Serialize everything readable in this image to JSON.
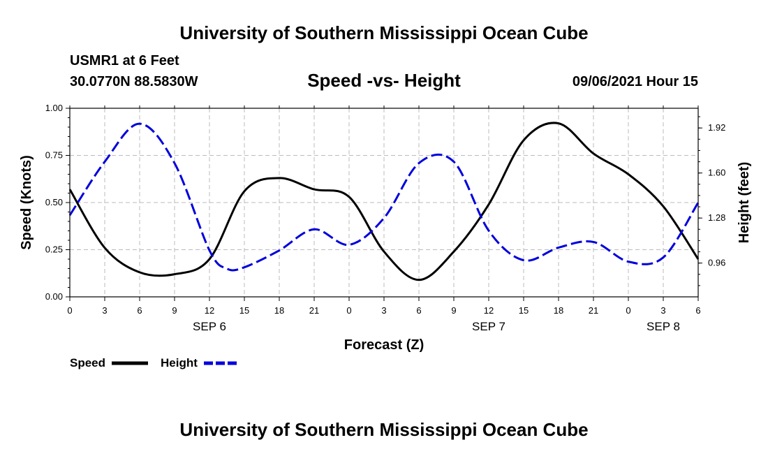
{
  "header": {
    "title": "University of Southern Mississippi Ocean Cube",
    "station": "USMR1 at 6 Feet",
    "coords": "30.0770N  88.5830W",
    "chart_title": "Speed -vs- Height",
    "datetime": "09/06/2021 Hour 15"
  },
  "footer": {
    "title": "University of Southern Mississippi Ocean Cube"
  },
  "colors": {
    "speed": "#000000",
    "height": "#0000dd",
    "grid": "#bbbbbb"
  },
  "chart_data": {
    "type": "line",
    "title": "Speed -vs- Height",
    "xlabel": "Forecast (Z)",
    "ylabel": "Speed (Knots)",
    "y2label": "Height (feet)",
    "x_unit": "hours from Sep 6 00Z",
    "xlim": [
      0,
      54
    ],
    "ylim": [
      0,
      1
    ],
    "y2lim": [
      0.72,
      2.06
    ],
    "x_ticks": [
      0,
      3,
      6,
      9,
      12,
      15,
      18,
      21,
      24,
      27,
      30,
      33,
      36,
      39,
      42,
      45,
      48,
      51,
      54
    ],
    "x_tick_labels": [
      "0",
      "3",
      "6",
      "9",
      "12",
      "15",
      "18",
      "21",
      "0",
      "3",
      "6",
      "9",
      "12",
      "15",
      "18",
      "21",
      "0",
      "3",
      "6"
    ],
    "date_labels": [
      {
        "x": 12,
        "label": "SEP 6"
      },
      {
        "x": 36,
        "label": "SEP 7"
      },
      {
        "x": 51,
        "label": "SEP 8"
      }
    ],
    "y_ticks": [
      0,
      0.25,
      0.5,
      0.75,
      1.0
    ],
    "y_tick_labels": [
      "0.00",
      "0.25",
      "0.50",
      "0.75",
      "1.00"
    ],
    "y2_ticks": [
      0.96,
      1.28,
      1.6,
      1.92
    ],
    "y2_tick_labels": [
      "0.96",
      "1.28",
      "1.60",
      "1.92"
    ],
    "grid": true,
    "series": [
      {
        "name": "Speed",
        "axis": "left",
        "style": "solid",
        "x": [
          0,
          3,
          6,
          9,
          12,
          15,
          18,
          21,
          24,
          27,
          30,
          33,
          36,
          39,
          42,
          45,
          48,
          51,
          54
        ],
        "values": [
          0.57,
          0.26,
          0.13,
          0.12,
          0.2,
          0.56,
          0.63,
          0.57,
          0.53,
          0.24,
          0.09,
          0.24,
          0.49,
          0.83,
          0.92,
          0.76,
          0.65,
          0.48,
          0.2
        ]
      },
      {
        "name": "Height",
        "axis": "right",
        "style": "dashed",
        "x": [
          0,
          3,
          6,
          9,
          12,
          13.5,
          15,
          18,
          21,
          24,
          27,
          30,
          33,
          36,
          39,
          42,
          45,
          48,
          51,
          54
        ],
        "values": [
          1.3,
          1.68,
          1.95,
          1.67,
          1.05,
          0.92,
          0.93,
          1.05,
          1.2,
          1.09,
          1.28,
          1.67,
          1.68,
          1.19,
          0.98,
          1.07,
          1.11,
          0.97,
          1.0,
          1.39
        ]
      }
    ],
    "legend": {
      "position": "bottom-left",
      "entries": [
        "Speed",
        "Height"
      ]
    }
  }
}
